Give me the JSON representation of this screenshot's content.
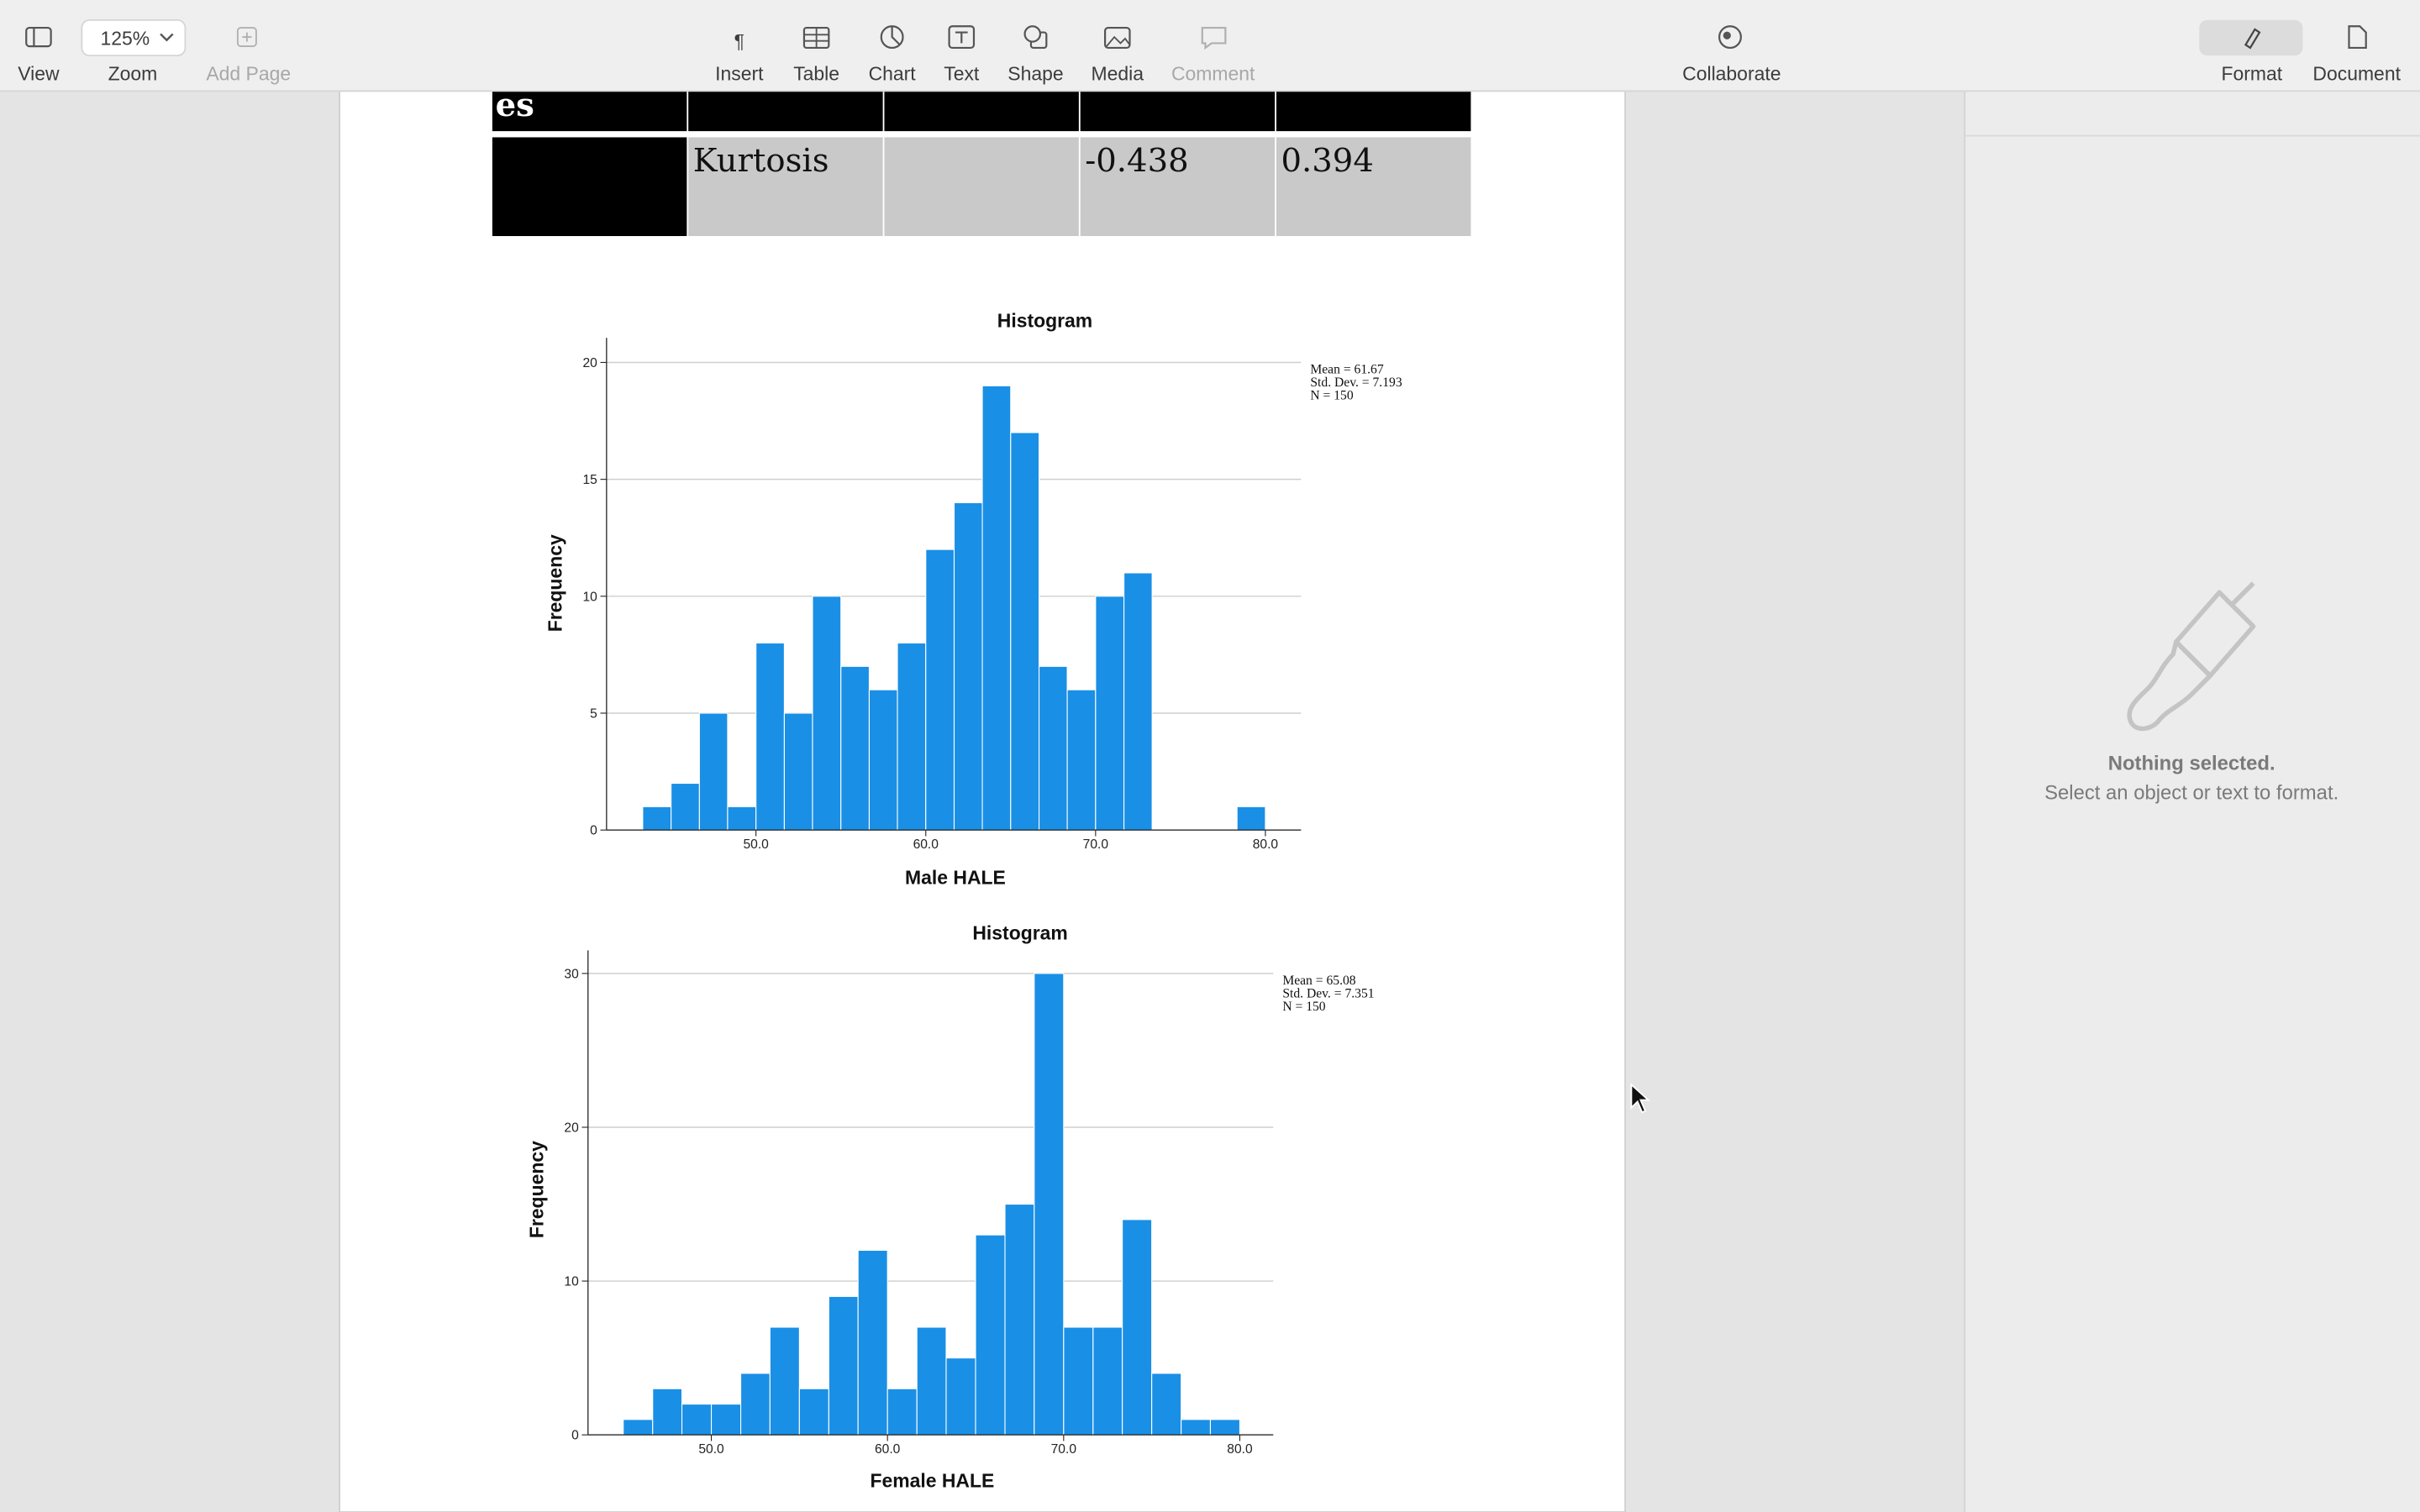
{
  "toolbar": {
    "view": "View",
    "zoom_value": "125%",
    "zoom": "Zoom",
    "add_page": "Add Page",
    "insert": "Insert",
    "table": "Table",
    "chart": "Chart",
    "text": "Text",
    "shape": "Shape",
    "media": "Media",
    "comment": "Comment",
    "collaborate": "Collaborate",
    "format": "Format",
    "document": "Document"
  },
  "table": {
    "top_row_text": "es",
    "kurtosis_row": [
      "Kurtosis",
      "-0.438",
      "0.394"
    ]
  },
  "chart_data": [
    {
      "type": "histogram",
      "title": "Histogram",
      "x_label": "Male HALE",
      "y_label": "Frequency",
      "stats": [
        "Mean = 61.67",
        "Std. Dev. = 7.193",
        "N = 150"
      ],
      "bins": [
        43.33,
        45,
        46.67,
        48.33,
        50,
        51.67,
        53.33,
        55,
        56.67,
        58.33,
        60,
        61.67,
        63.33,
        65,
        66.67,
        68.33,
        70,
        71.67,
        73.33,
        75,
        76.67,
        78.33,
        80
      ],
      "counts": [
        1,
        2,
        5,
        1,
        8,
        5,
        10,
        7,
        6,
        8,
        12,
        14,
        19,
        17,
        7,
        6,
        10,
        11,
        0,
        0,
        0,
        1
      ],
      "color": "#1a8fe6",
      "xlim": [
        41.2,
        82.1
      ],
      "ylim": [
        0,
        21.05
      ],
      "xticks": [
        {
          "value": 50,
          "label": "50.0"
        },
        {
          "value": 60,
          "label": "60.0"
        },
        {
          "value": 70,
          "label": "70.0"
        },
        {
          "value": 80,
          "label": "80.0"
        }
      ],
      "yticks": [
        0,
        5,
        10,
        15,
        20
      ],
      "grid": true
    },
    {
      "type": "histogram",
      "title": "Histogram",
      "x_label": "Female HALE",
      "y_label": "Frequency",
      "stats": [
        "Mean = 65.08",
        "Std. Dev. = 7.351",
        "N = 150"
      ],
      "bins": [
        45,
        46.67,
        48.33,
        50,
        51.67,
        53.33,
        55,
        56.67,
        58.33,
        60,
        61.67,
        63.33,
        65,
        66.67,
        68.33,
        70,
        71.67,
        73.33,
        75,
        76.67,
        78.33,
        80
      ],
      "counts": [
        1,
        3,
        2,
        2,
        4,
        7,
        3,
        9,
        12,
        3,
        7,
        5,
        13,
        15,
        30,
        7,
        7,
        14,
        4,
        1,
        1
      ],
      "color": "#1a8fe6",
      "xlim": [
        43,
        81.9
      ],
      "ylim": [
        0,
        31.5
      ],
      "xticks": [
        {
          "value": 50,
          "label": "50.0"
        },
        {
          "value": 60,
          "label": "60.0"
        },
        {
          "value": 70,
          "label": "70.0"
        },
        {
          "value": 80,
          "label": "80.0"
        }
      ],
      "yticks": [
        0,
        10,
        20,
        30
      ],
      "grid": true
    }
  ],
  "sidebar": {
    "heading": "Nothing selected.",
    "hint": "Select an object or text to format."
  }
}
